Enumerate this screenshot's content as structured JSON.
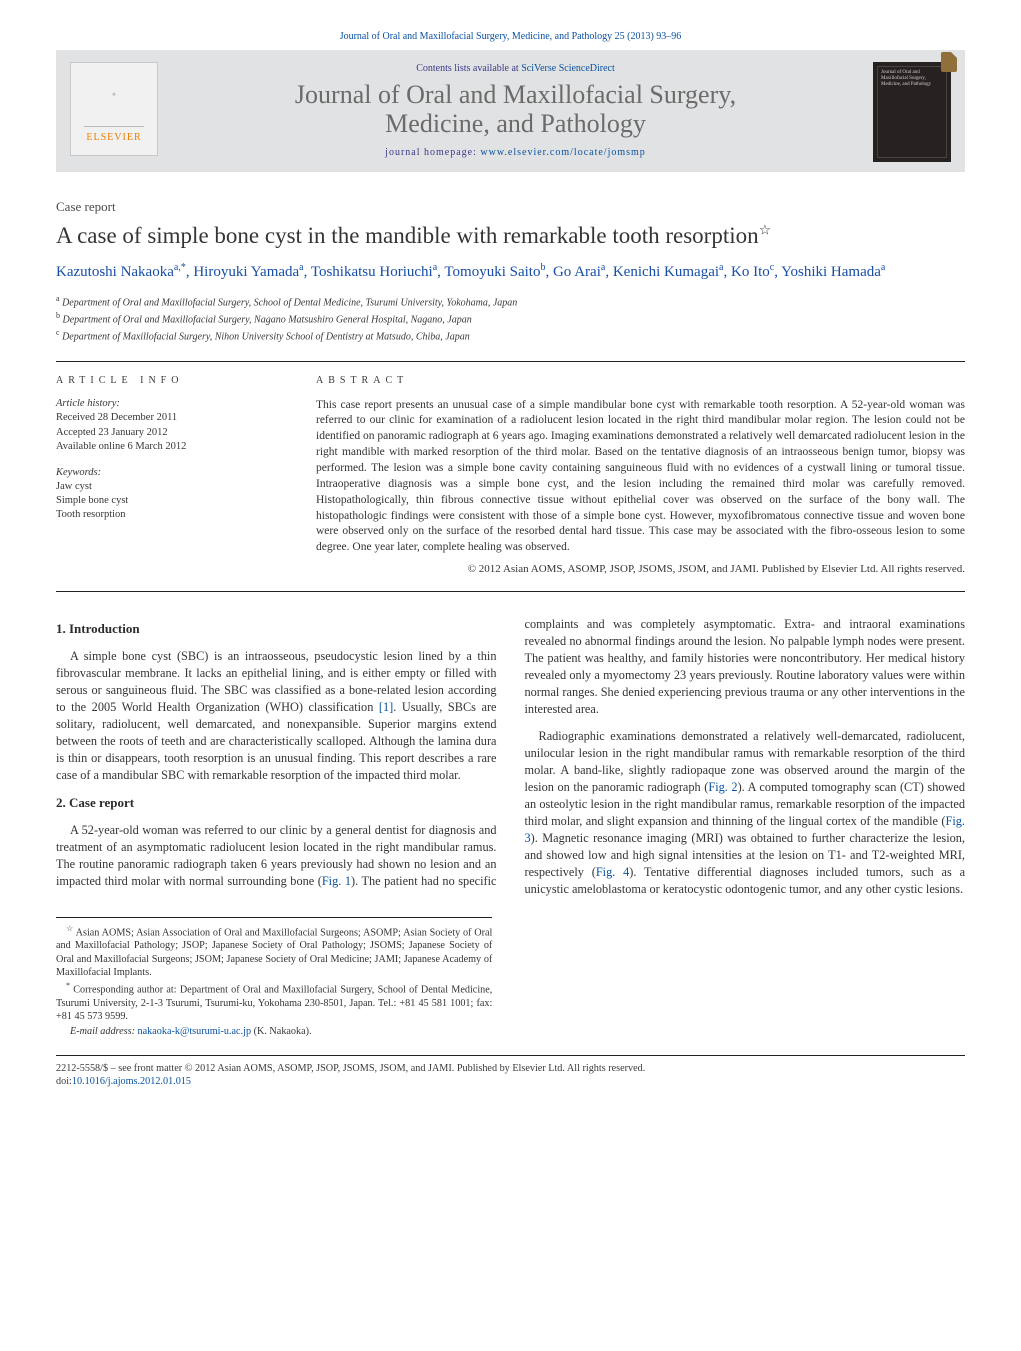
{
  "running_head": "Journal of Oral and Maxillofacial Surgery, Medicine, and Pathology 25 (2013) 93–96",
  "header": {
    "contents_prefix": "Contents lists available at ",
    "contents_link": "SciVerse ScienceDirect",
    "journal_title_line1": "Journal of Oral and Maxillofacial Surgery,",
    "journal_title_line2": "Medicine, and Pathology",
    "homepage_label": "journal homepage: ",
    "homepage_url": "www.elsevier.com/locate/jomsmp",
    "elsevier_brand": "ELSEVIER",
    "cover_text": "Journal of Oral and Maxillofacial Surgery, Medicine, and Pathology"
  },
  "article": {
    "type": "Case report",
    "title": "A case of simple bone cyst in the mandible with remarkable tooth resorption",
    "title_star": "☆",
    "authors_html": "Kazutoshi Nakaoka|a,*|, Hiroyuki Yamada|a|, Toshikatsu Horiuchi|a|, Tomoyuki Saito|b|, Go Arai|a|, Kenichi Kumagai|a|, Ko Ito|c|, Yoshiki Hamada|a|",
    "affiliations": {
      "a": "Department of Oral and Maxillofacial Surgery, School of Dental Medicine, Tsurumi University, Yokohama, Japan",
      "b": "Department of Oral and Maxillofacial Surgery, Nagano Matsushiro General Hospital, Nagano, Japan",
      "c": "Department of Maxillofacial Surgery, Nihon University School of Dentistry at Matsudo, Chiba, Japan"
    }
  },
  "info": {
    "heading_left": "article info",
    "heading_right": "abstract",
    "history_label": "Article history:",
    "received": "Received 28 December 2011",
    "accepted": "Accepted 23 January 2012",
    "online": "Available online 6 March 2012",
    "keywords_label": "Keywords:",
    "keywords": [
      "Jaw cyst",
      "Simple bone cyst",
      "Tooth resorption"
    ],
    "abstract": "This case report presents an unusual case of a simple mandibular bone cyst with remarkable tooth resorption. A 52-year-old woman was referred to our clinic for examination of a radiolucent lesion located in the right third mandibular molar region. The lesion could not be identified on panoramic radiograph at 6 years ago. Imaging examinations demonstrated a relatively well demarcated radiolucent lesion in the right mandible with marked resorption of the third molar. Based on the tentative diagnosis of an intraosseous benign tumor, biopsy was performed. The lesion was a simple bone cavity containing sanguineous fluid with no evidences of a cystwall lining or tumoral tissue. Intraoperative diagnosis was a simple bone cyst, and the lesion including the remained third molar was carefully removed. Histopathologically, thin fibrous connective tissue without epithelial cover was observed on the surface of the bony wall. The histopathologic findings were consistent with those of a simple bone cyst. However, myxofibromatous connective tissue and woven bone were observed only on the surface of the resorbed dental hard tissue. This case may be associated with the fibro-osseous lesion to some degree. One year later, complete healing was observed.",
    "copyright": "© 2012 Asian AOMS, ASOMP, JSOP, JSOMS, JSOM, and JAMI. Published by Elsevier Ltd. All rights reserved."
  },
  "sections": {
    "intro_heading": "1.  Introduction",
    "intro_p1": "A simple bone cyst (SBC) is an intraosseous, pseudocystic lesion lined by a thin fibrovascular membrane. It lacks an epithelial lining, and is either empty or filled with serous or sanguineous fluid. The SBC was classified as a bone-related lesion according to the 2005 World Health Organization (WHO) classification [1]. Usually, SBCs are solitary, radiolucent, well demarcated, and nonexpansible. Superior margins extend between the roots of teeth and are characteristically scalloped. Although the lamina dura is thin or disappears, tooth resorption is an unusual finding. This report describes a rare case of a mandibular SBC with remarkable resorption of the impacted third molar.",
    "case_heading": "2.  Case report",
    "case_p1": "A 52-year-old woman was referred to our clinic by a general dentist for diagnosis and treatment of an asymptomatic radiolucent lesion located in the right mandibular ramus. The routine panoramic radiograph taken 6 years previously had shown no lesion and an impacted third molar with normal surrounding bone (Fig. 1). The patient had no specific complaints and was completely asymptomatic. Extra- and intraoral examinations revealed no abnormal findings around the lesion. No palpable lymph nodes were present. The patient was healthy, and family histories were noncontributory. Her medical history revealed only a myomectomy 23 years previously. Routine laboratory values were within normal ranges. She denied experiencing previous trauma or any other interventions in the interested area.",
    "case_p2": "Radiographic examinations demonstrated a relatively well-demarcated, radiolucent, unilocular lesion in the right mandibular ramus with remarkable resorption of the third molar. A band-like, slightly radiopaque zone was observed around the margin of the lesion on the panoramic radiograph (Fig. 2). A computed tomography scan (CT) showed an osteolytic lesion in the right mandibular ramus, remarkable resorption of the impacted third molar, and slight expansion and thinning of the lingual cortex of the mandible (Fig. 3). Magnetic resonance imaging (MRI) was obtained to further characterize the lesion, and showed low and high signal intensities at the lesion on T1- and T2-weighted MRI, respectively (Fig. 4). Tentative differential diagnoses included tumors, such as a unicystic ameloblastoma or keratocystic odontogenic tumor, and any other cystic lesions."
  },
  "footnotes": {
    "star": "Asian AOMS; Asian Association of Oral and Maxillofacial Surgeons; ASOMP; Asian Society of Oral and Maxillofacial Pathology; JSOP; Japanese Society of Oral Pathology; JSOMS; Japanese Society of Oral and Maxillofacial Surgeons; JSOM; Japanese Society of Oral Medicine; JAMI; Japanese Academy of Maxillofacial Implants.",
    "corr_label": "Corresponding author at: ",
    "corr": "Department of Oral and Maxillofacial Surgery, School of Dental Medicine, Tsurumi University, 2-1-3 Tsurumi, Tsurumi-ku, Yokohama 230-8501, Japan. Tel.: +81 45 581 1001; fax: +81 45 573 9599.",
    "email_label": "E-mail address: ",
    "email": "nakaoka-k@tsurumi-u.ac.jp",
    "email_who": " (K. Nakaoka)."
  },
  "bottom": {
    "issn": "2212-5558/$ – see front matter © 2012 Asian AOMS, ASOMP, JSOP, JSOMS, JSOM, and JAMI. Published by Elsevier Ltd. All rights reserved.",
    "doi_label": "doi:",
    "doi": "10.1016/j.ajoms.2012.01.015"
  },
  "colors": {
    "link": "#0a52a0",
    "author": "#174ea6",
    "header_bg": "#e1e2e3",
    "elsevier_orange": "#ef7d00",
    "text": "#343434",
    "rule": "#202020"
  },
  "typography": {
    "body_pt": 12.3,
    "title_pt": 23,
    "journal_title_pt": 26,
    "abstract_pt": 11.5,
    "small_pt": 10.2
  }
}
